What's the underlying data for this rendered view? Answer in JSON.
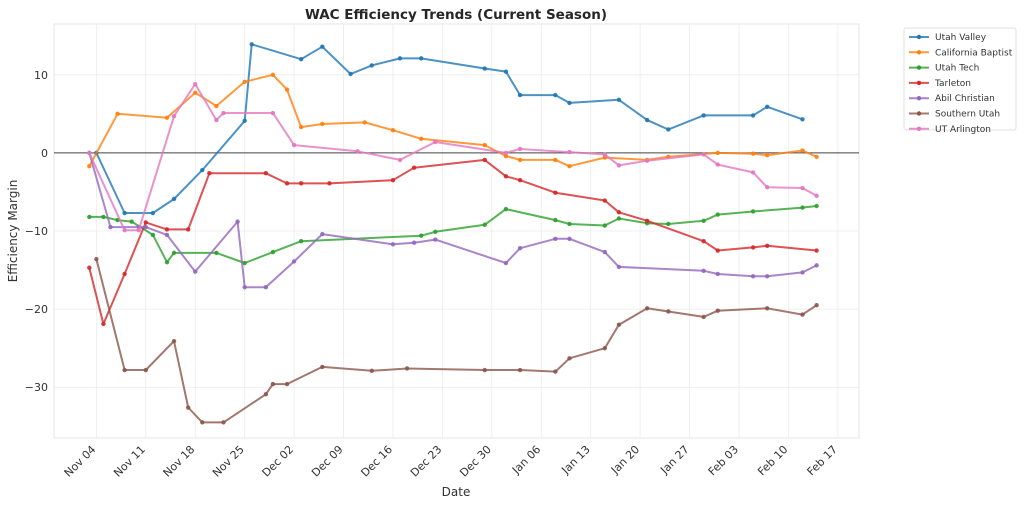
{
  "chart_data": {
    "type": "line",
    "title": "WAC Efficiency Trends (Current Season)",
    "xlabel": "Date",
    "ylabel": "Efficiency Margin",
    "x_unit": "days since Nov 04",
    "xlim": [
      -6,
      108
    ],
    "ylim": [
      -36.5,
      16.5
    ],
    "yticks": [
      10,
      0,
      -10,
      -20,
      -30
    ],
    "ytick_labels": [
      "10",
      "0",
      "−10",
      "−20",
      "−30"
    ],
    "xticks": [
      0,
      7,
      14,
      21,
      28,
      35,
      42,
      49,
      56,
      63,
      70,
      77,
      84,
      91,
      98,
      105
    ],
    "xtick_labels": [
      "Nov 04",
      "Nov 11",
      "Nov 18",
      "Nov 25",
      "Dec 02",
      "Dec 09",
      "Dec 16",
      "Dec 23",
      "Dec 30",
      "Jan 06",
      "Jan 13",
      "Jan 20",
      "Jan 27",
      "Feb 03",
      "Feb 10",
      "Feb 17"
    ],
    "grid": true,
    "zero_line": true,
    "legend_position": "outside-top-right",
    "series": [
      {
        "name": "Utah Valley",
        "color": "#1f77b4",
        "x": [
          0,
          4,
          8,
          11,
          15,
          21,
          22,
          29,
          32,
          36,
          39,
          43,
          46,
          55,
          58,
          60,
          65,
          67,
          74,
          78,
          81,
          86,
          93,
          95,
          100
        ],
        "values": [
          0,
          -7.7,
          -7.7,
          -5.9,
          -2.2,
          4.1,
          13.9,
          12.0,
          13.6,
          10.1,
          11.2,
          12.1,
          12.1,
          10.8,
          10.4,
          7.4,
          7.4,
          6.4,
          6.8,
          4.2,
          3.0,
          4.8,
          4.8,
          5.9,
          4.3
        ]
      },
      {
        "name": "California Baptist",
        "color": "#ff7f0e",
        "x": [
          -1,
          3,
          10,
          14,
          17,
          21,
          25,
          27,
          29,
          32,
          38,
          42,
          46,
          55,
          58,
          60,
          65,
          67,
          72,
          78,
          81,
          88,
          93,
          95,
          100,
          102
        ],
        "values": [
          -1.7,
          5.0,
          4.5,
          7.7,
          6.0,
          9.1,
          10.0,
          8.1,
          3.3,
          3.7,
          3.9,
          2.9,
          1.8,
          1.0,
          -0.4,
          -0.9,
          -0.9,
          -1.7,
          -0.6,
          -0.9,
          -0.5,
          0.0,
          -0.1,
          -0.3,
          0.3,
          -0.5
        ]
      },
      {
        "name": "Utah Tech",
        "color": "#2ca02c",
        "x": [
          -1,
          1,
          3,
          5,
          8,
          10,
          11,
          17,
          21,
          25,
          29,
          46,
          48,
          55,
          58,
          65,
          67,
          72,
          74,
          78,
          81,
          86,
          88,
          93,
          100,
          102
        ],
        "values": [
          -8.2,
          -8.2,
          -8.6,
          -8.8,
          -10.5,
          -14.0,
          -12.8,
          -12.8,
          -14.1,
          -12.7,
          -11.3,
          -10.6,
          -10.1,
          -9.2,
          -7.2,
          -8.6,
          -9.1,
          -9.3,
          -8.4,
          -9.0,
          -9.1,
          -8.7,
          -7.9,
          -7.5,
          -7.0,
          -6.8
        ]
      },
      {
        "name": "Tarleton",
        "color": "#d62728",
        "x": [
          -1,
          1,
          4,
          7,
          10,
          13,
          16,
          24,
          27,
          29,
          33,
          42,
          45,
          55,
          58,
          60,
          65,
          72,
          74,
          78,
          86,
          88,
          93,
          95,
          102
        ],
        "values": [
          -14.7,
          -21.9,
          -15.5,
          -8.9,
          -9.8,
          -9.8,
          -2.6,
          -2.6,
          -3.9,
          -3.9,
          -3.9,
          -3.5,
          -1.9,
          -0.9,
          -3.0,
          -3.5,
          -5.1,
          -6.1,
          -7.6,
          -8.7,
          -11.3,
          -12.5,
          -12.1,
          -11.9,
          -12.5
        ]
      },
      {
        "name": "Abil Christian",
        "color": "#9467bd",
        "x": [
          -1,
          2,
          6,
          7,
          10,
          14,
          20,
          21,
          24,
          28,
          32,
          42,
          45,
          48,
          58,
          60,
          65,
          67,
          72,
          74,
          86,
          88,
          93,
          95,
          100,
          102
        ],
        "values": [
          0,
          -9.5,
          -9.5,
          -9.5,
          -10.5,
          -15.2,
          -8.8,
          -17.2,
          -17.2,
          -13.9,
          -10.4,
          -11.7,
          -11.5,
          -11.1,
          -14.1,
          -12.2,
          -11.0,
          -11.0,
          -12.7,
          -14.6,
          -15.1,
          -15.5,
          -15.8,
          -15.8,
          -15.3,
          -14.4
        ]
      },
      {
        "name": "Southern Utah",
        "color": "#8c564b",
        "x": [
          0,
          4,
          7,
          11,
          13,
          15,
          18,
          24,
          25,
          27,
          32,
          39,
          44,
          55,
          60,
          65,
          67,
          72,
          74,
          78,
          81,
          86,
          88,
          95,
          100,
          102
        ],
        "values": [
          -13.6,
          -27.8,
          -27.8,
          -24.1,
          -32.6,
          -34.5,
          -34.5,
          -30.9,
          -29.6,
          -29.6,
          -27.4,
          -27.9,
          -27.6,
          -27.8,
          -27.8,
          -28.0,
          -26.3,
          -25.0,
          -22.0,
          -19.9,
          -20.3,
          -21.0,
          -20.2,
          -19.9,
          -20.7,
          -19.5
        ]
      },
      {
        "name": "UT Arlington",
        "color": "#e377c2",
        "x": [
          -1,
          4,
          6,
          11,
          14,
          17,
          18,
          25,
          28,
          37,
          43,
          48,
          58,
          60,
          67,
          72,
          74,
          78,
          86,
          88,
          93,
          95,
          100,
          102
        ],
        "values": [
          0,
          -9.9,
          -9.9,
          4.7,
          8.8,
          4.2,
          5.1,
          5.1,
          1.0,
          0.2,
          -0.9,
          1.4,
          0.0,
          0.5,
          0.1,
          -0.2,
          -1.6,
          -1.0,
          -0.2,
          -1.5,
          -2.5,
          -4.4,
          -4.5,
          -5.5
        ]
      }
    ]
  }
}
